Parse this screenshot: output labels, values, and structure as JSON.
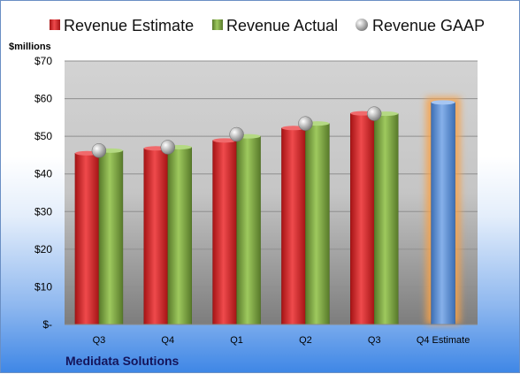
{
  "chart_data": {
    "type": "bar",
    "title": "",
    "ylabel": "$millions",
    "xlabel": "",
    "ylim": [
      0,
      70
    ],
    "yticks": [
      0,
      10,
      20,
      30,
      40,
      50,
      60,
      70
    ],
    "ytick_labels": [
      "$-",
      "$10",
      "$20",
      "$30",
      "$40",
      "$50",
      "$60",
      "$70"
    ],
    "categories": [
      "Q3",
      "Q4",
      "Q1",
      "Q2",
      "Q3",
      "Q4 Estimate"
    ],
    "series": [
      {
        "name": "Revenue Estimate",
        "kind": "bar",
        "color": "#d9282b",
        "values": [
          45.5,
          46.8,
          48.9,
          52.2,
          56.1,
          null
        ]
      },
      {
        "name": "Revenue Actual",
        "kind": "bar",
        "color": "#7aa33e",
        "values": [
          46.2,
          47.1,
          50.0,
          53.4,
          56.0,
          null
        ]
      },
      {
        "name": "Revenue GAAP",
        "kind": "marker",
        "color": "#a9a9a9",
        "values": [
          46.2,
          47.1,
          50.5,
          53.4,
          56.0,
          null
        ]
      },
      {
        "name": "Q4 Estimate",
        "kind": "bar",
        "color": "#5b8fd6",
        "highlight": "#f7a24a",
        "values": [
          null,
          null,
          null,
          null,
          null,
          59.0
        ]
      }
    ],
    "grid": true,
    "legend": "top"
  },
  "company": "Medidata Solutions"
}
